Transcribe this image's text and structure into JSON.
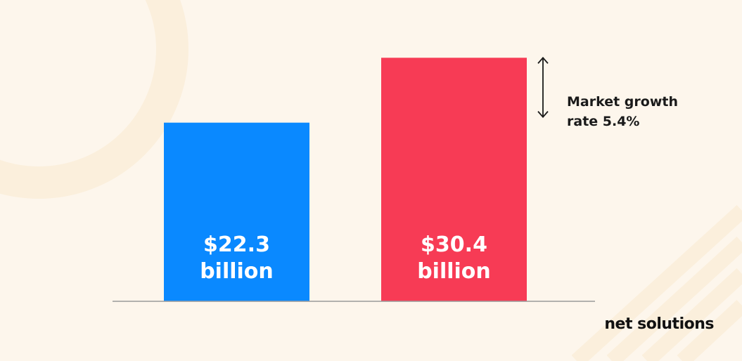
{
  "chart_data": {
    "type": "bar",
    "categories": [
      "",
      ""
    ],
    "values": [
      22.3,
      30.4
    ],
    "data_labels": [
      [
        "$22.3",
        "billion"
      ],
      [
        "$30.4",
        "billion"
      ]
    ],
    "colors": [
      "#0a89ff",
      "#f73b55"
    ],
    "ylim": [
      0,
      32
    ],
    "grid": false,
    "annotation": {
      "lines": [
        "Market growth",
        "rate 5.4%"
      ],
      "from_value": 22.3,
      "to_value": 30.4
    }
  },
  "colors": {
    "background": "#fdf6ec",
    "decoration": "#fbefdc",
    "baseline": "#9a9a9a",
    "arrow": "#1a1a1a"
  },
  "logo": {
    "text": "net solutions"
  }
}
